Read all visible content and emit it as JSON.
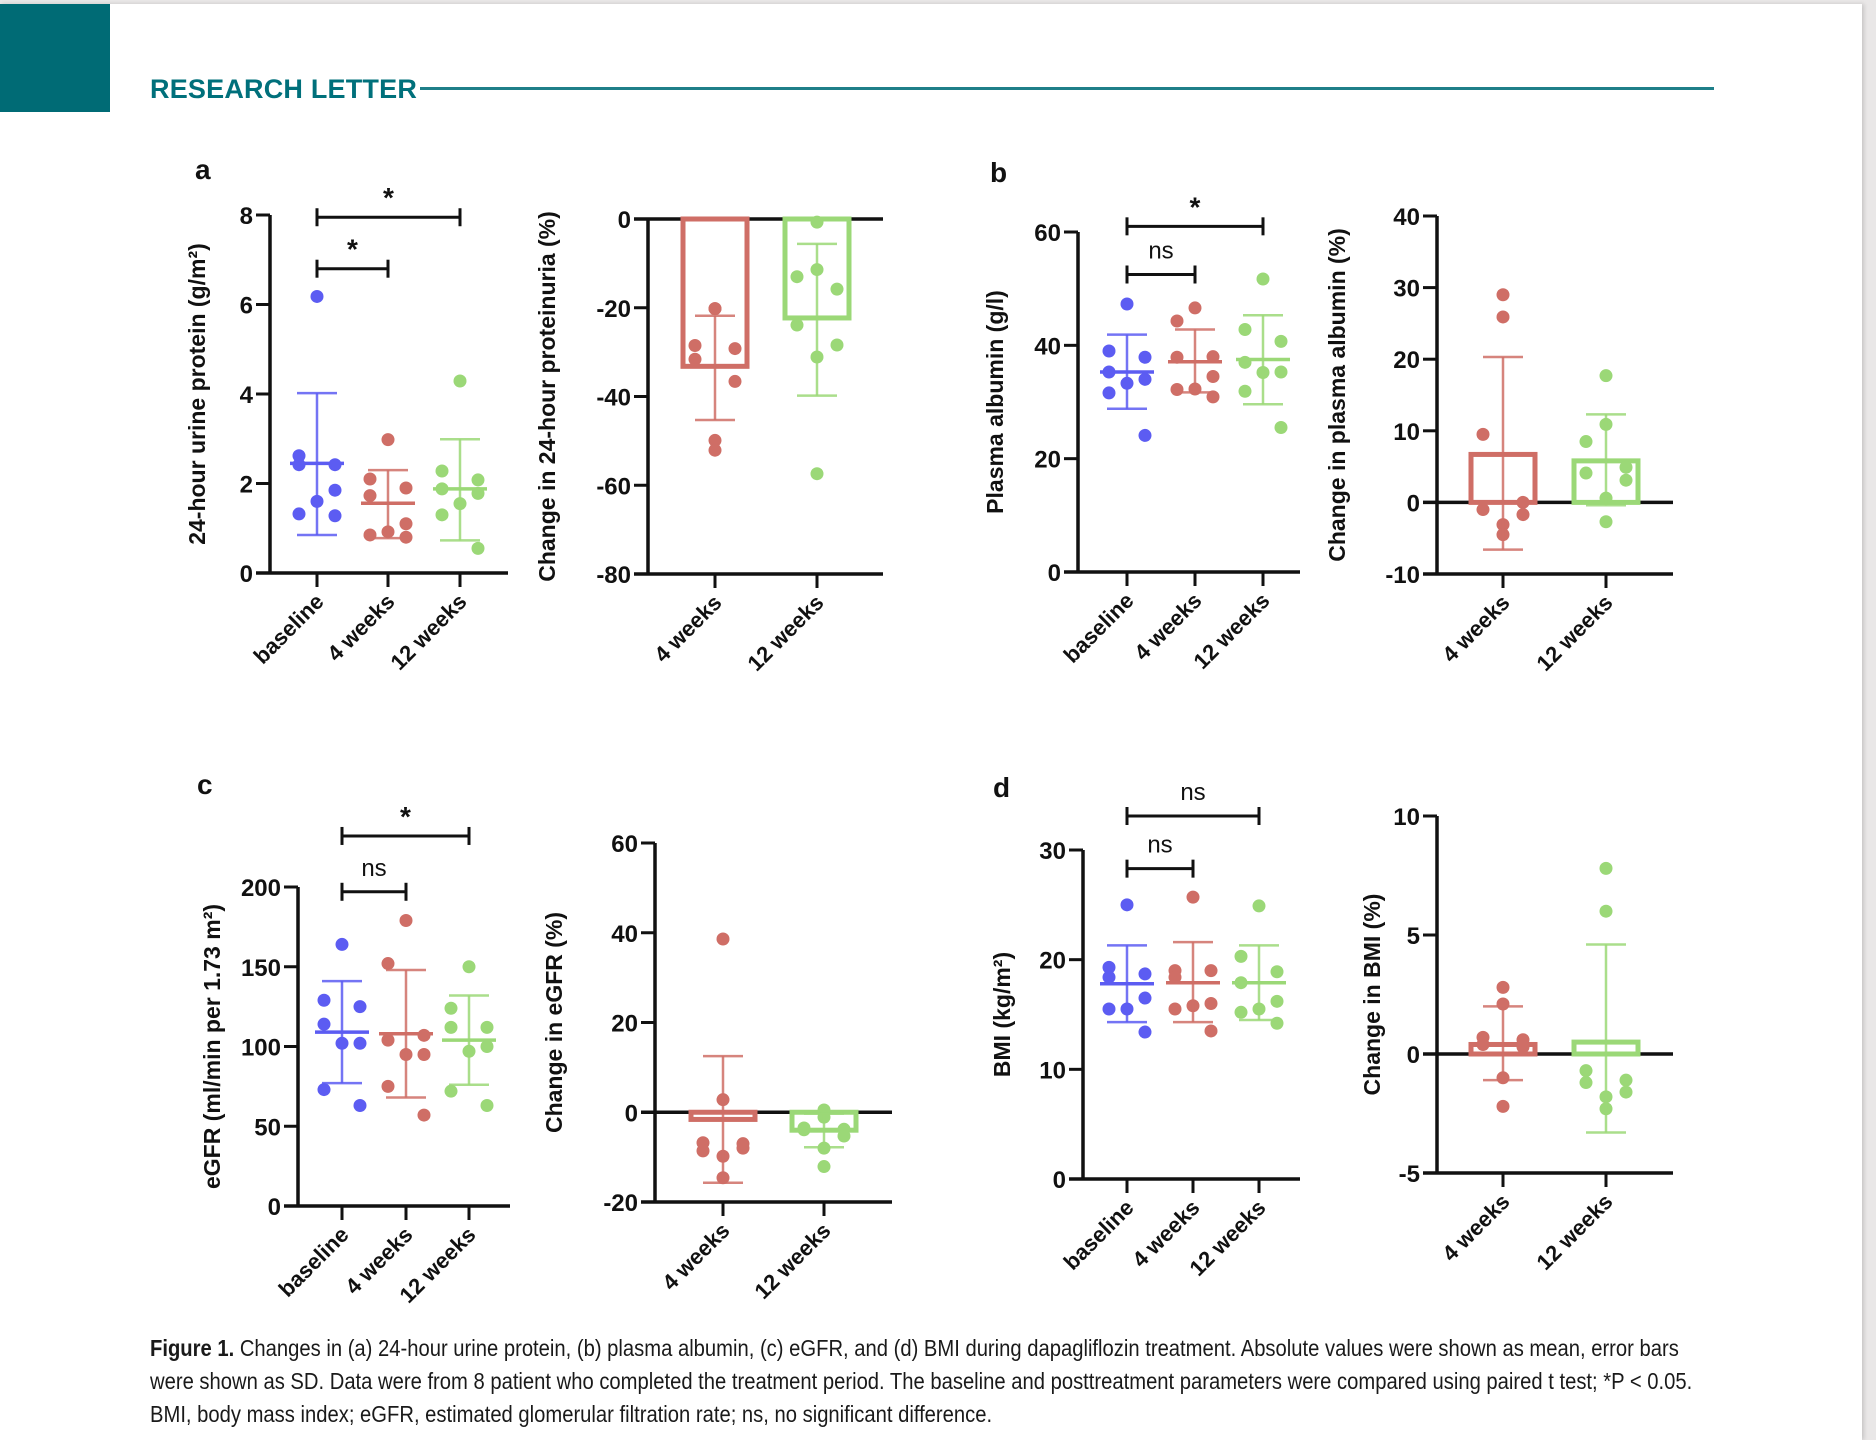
{
  "header": {
    "section_label": "RESEARCH LETTER"
  },
  "colors": {
    "brand": "#006b75",
    "baseline": "#5c5cf2",
    "week4": "#cf6e66",
    "week12": "#9bd877",
    "axis": "#111111"
  },
  "caption": {
    "label": "Figure 1.",
    "text": " Changes in (a) 24-hour urine protein, (b) plasma albumin, (c) eGFR, and (d) BMI during dapagliflozin treatment. Absolute values were shown as mean, error bars were shown as SD. Data were from 8 patient who completed the treatment period. The baseline and posttreatment parameters were compared using paired t test; *P < 0.05. BMI, body mass index; eGFR, estimated glomerular filtration rate; ns, no significant difference."
  },
  "chart_data": [
    {
      "panel": "a",
      "id": "a-abs",
      "type": "scatter",
      "ylabel": "24-hour  urine protein (g/m²)",
      "ylim": [
        0,
        8
      ],
      "yticks": [
        0,
        2,
        4,
        6,
        8
      ],
      "categories": [
        "baseline",
        "4 weeks",
        "12 weeks"
      ],
      "series": [
        {
          "name": "baseline",
          "color_key": "baseline",
          "mean": 2.45,
          "sd_low": 0.85,
          "sd_high": 4.02,
          "points": [
            6.18,
            2.62,
            2.42,
            2.42,
            1.85,
            1.6,
            1.32,
            1.28
          ]
        },
        {
          "name": "4 weeks",
          "color_key": "week4",
          "mean": 1.56,
          "sd_low": 0.78,
          "sd_high": 2.3,
          "points": [
            2.98,
            2.1,
            1.9,
            1.73,
            1.1,
            0.92,
            0.85,
            0.8
          ]
        },
        {
          "name": "12 weeks",
          "color_key": "week12",
          "mean": 1.88,
          "sd_low": 0.73,
          "sd_high": 2.99,
          "points": [
            4.29,
            2.28,
            2.08,
            1.88,
            1.78,
            1.55,
            1.3,
            0.55
          ]
        }
      ],
      "significance": [
        {
          "from": 0,
          "to": 1,
          "label": "*",
          "y": 6.8
        },
        {
          "from": 0,
          "to": 2,
          "label": "*",
          "y": 7.95
        }
      ]
    },
    {
      "panel": "a",
      "id": "a-chg",
      "type": "bar",
      "ylabel": "Change in  24-hour proteinuria (%)",
      "ylim": [
        -80,
        0
      ],
      "yticks": [
        0,
        -20,
        -40,
        -60,
        -80
      ],
      "categories": [
        "4 weeks",
        "12 weeks"
      ],
      "series": [
        {
          "name": "4 weeks",
          "color_key": "week4",
          "mean": -33.2,
          "sd_low": -45.3,
          "sd_high": -21.8,
          "points": [
            -20.2,
            -20.2,
            -28.5,
            -29.2,
            -31.6,
            -36.6,
            -49.9,
            -52.1
          ]
        },
        {
          "name": "12 weeks",
          "color_key": "week12",
          "mean": -22.3,
          "sd_low": -39.8,
          "sd_high": -5.6,
          "points": [
            -0.7,
            -11.4,
            -13.0,
            -15.8,
            -23.9,
            -28.4,
            -31.1,
            -57.4
          ]
        }
      ]
    },
    {
      "panel": "b",
      "id": "b-abs",
      "type": "scatter",
      "ylabel": "Plasma albumin (g/l)",
      "ylim": [
        0,
        60
      ],
      "yticks": [
        0,
        20,
        40,
        60
      ],
      "categories": [
        "baseline",
        "4 weeks",
        "12 weeks"
      ],
      "series": [
        {
          "name": "baseline",
          "color_key": "baseline",
          "mean": 35.3,
          "sd_low": 28.8,
          "sd_high": 41.9,
          "points": [
            47.3,
            39.0,
            37.9,
            35.3,
            34.0,
            33.3,
            31.6,
            24.1
          ]
        },
        {
          "name": "4 weeks",
          "color_key": "week4",
          "mean": 37.1,
          "sd_low": 31.7,
          "sd_high": 42.8,
          "points": [
            46.6,
            44.3,
            38.0,
            37.9,
            34.5,
            32.3,
            32.2,
            30.9
          ]
        },
        {
          "name": "12 weeks",
          "color_key": "week12",
          "mean": 37.5,
          "sd_low": 29.6,
          "sd_high": 45.3,
          "points": [
            51.7,
            42.8,
            40.7,
            37.0,
            35.3,
            35.2,
            31.9,
            25.5
          ]
        }
      ],
      "significance": [
        {
          "from": 0,
          "to": 1,
          "label": "ns",
          "y": 52.5
        },
        {
          "from": 0,
          "to": 2,
          "label": "*",
          "y": 61.0
        }
      ]
    },
    {
      "panel": "b",
      "id": "b-chg",
      "type": "bar",
      "ylabel": "Change in plasma albumin (%)",
      "ylim": [
        -10,
        40
      ],
      "yticks": [
        -10,
        0,
        10,
        20,
        30,
        40
      ],
      "categories": [
        "4 weeks",
        "12 weeks"
      ],
      "series": [
        {
          "name": "4 weeks",
          "color_key": "week4",
          "mean": 6.7,
          "sd_low": -6.6,
          "sd_high": 20.3,
          "points": [
            29.0,
            25.9,
            9.5,
            0.0,
            -1.0,
            -1.7,
            -3.1,
            -4.5
          ]
        },
        {
          "name": "12 weeks",
          "color_key": "week12",
          "mean": 5.8,
          "sd_low": -0.4,
          "sd_high": 12.3,
          "points": [
            17.7,
            10.9,
            8.5,
            4.9,
            4.1,
            3.1,
            0.6,
            -2.7
          ]
        }
      ]
    },
    {
      "panel": "c",
      "id": "c-abs",
      "type": "scatter",
      "ylabel": "eGFR (ml/min per 1.73 m²)",
      "ylim": [
        0,
        200
      ],
      "yticks": [
        0,
        50,
        100,
        150,
        200
      ],
      "categories": [
        "baseline",
        "4 weeks",
        "12 weeks"
      ],
      "series": [
        {
          "name": "baseline",
          "color_key": "baseline",
          "mean": 109,
          "sd_low": 77,
          "sd_high": 141,
          "points": [
            164,
            129,
            125,
            114,
            102,
            102,
            73,
            63
          ]
        },
        {
          "name": "4 weeks",
          "color_key": "week4",
          "mean": 108,
          "sd_low": 68,
          "sd_high": 148,
          "points": [
            179,
            152,
            107,
            104,
            95,
            95,
            75,
            57
          ]
        },
        {
          "name": "12 weeks",
          "color_key": "week12",
          "mean": 104,
          "sd_low": 76,
          "sd_high": 132,
          "points": [
            150,
            124,
            112,
            112,
            100,
            97,
            72,
            63
          ]
        }
      ],
      "significance": [
        {
          "from": 0,
          "to": 1,
          "label": "ns",
          "y": 197
        },
        {
          "from": 0,
          "to": 2,
          "label": "*",
          "y": 232
        }
      ]
    },
    {
      "panel": "c",
      "id": "c-chg",
      "type": "bar",
      "ylabel": "Change in eGFR (%)",
      "ylim": [
        -20,
        60
      ],
      "yticks": [
        -20,
        0,
        20,
        40,
        60
      ],
      "categories": [
        "4 weeks",
        "12 weeks"
      ],
      "series": [
        {
          "name": "4 weeks",
          "color_key": "week4",
          "mean": -1.6,
          "sd_low": -15.7,
          "sd_high": 12.5,
          "points": [
            38.6,
            2.8,
            -6.8,
            -8.0,
            -8.6,
            -7.0,
            -9.8,
            -14.6
          ]
        },
        {
          "name": "12 weeks",
          "color_key": "week12",
          "mean": -4.0,
          "sd_low": -7.8,
          "sd_high": -0.3,
          "points": [
            0.5,
            -1.1,
            -3.5,
            -3.8,
            -3.9,
            -5.3,
            -8.0,
            -12.1
          ]
        }
      ]
    },
    {
      "panel": "d",
      "id": "d-abs",
      "type": "scatter",
      "ylabel": "BMI (kg/m²)",
      "ylim": [
        0,
        30
      ],
      "yticks": [
        0,
        10,
        20,
        30
      ],
      "categories": [
        "baseline",
        "4 weeks",
        "12 weeks"
      ],
      "series": [
        {
          "name": "baseline",
          "color_key": "baseline",
          "mean": 17.8,
          "sd_low": 14.3,
          "sd_high": 21.3,
          "points": [
            25.0,
            19.3,
            18.7,
            18.4,
            16.5,
            15.5,
            15.5,
            13.4
          ]
        },
        {
          "name": "4 weeks",
          "color_key": "week4",
          "mean": 17.9,
          "sd_low": 14.3,
          "sd_high": 21.6,
          "points": [
            25.7,
            19.0,
            19.0,
            18.4,
            16.0,
            15.8,
            15.5,
            13.5
          ]
        },
        {
          "name": "12 weeks",
          "color_key": "week12",
          "mean": 17.9,
          "sd_low": 14.5,
          "sd_high": 21.3,
          "points": [
            24.9,
            20.3,
            18.9,
            17.9,
            16.2,
            15.5,
            15.2,
            14.2
          ]
        }
      ],
      "significance": [
        {
          "from": 0,
          "to": 1,
          "label": "ns",
          "y": 28.3
        },
        {
          "from": 0,
          "to": 2,
          "label": "ns",
          "y": 33.1
        }
      ]
    },
    {
      "panel": "d",
      "id": "d-chg",
      "type": "bar",
      "ylabel": "Change in BMI (%)",
      "ylim": [
        -5,
        10
      ],
      "yticks": [
        -5,
        0,
        5,
        10
      ],
      "categories": [
        "4 weeks",
        "12 weeks"
      ],
      "series": [
        {
          "name": "4 weeks",
          "color_key": "week4",
          "mean": 0.4,
          "sd_low": -1.1,
          "sd_high": 2.0,
          "points": [
            2.8,
            2.1,
            0.7,
            0.6,
            0.4,
            0.3,
            -1.0,
            -2.2
          ]
        },
        {
          "name": "12 weeks",
          "color_key": "week12",
          "mean": 0.5,
          "sd_low": -3.3,
          "sd_high": 4.6,
          "points": [
            7.8,
            6.0,
            -0.7,
            -1.1,
            -1.2,
            -1.6,
            -1.8,
            -2.3
          ]
        }
      ]
    }
  ]
}
